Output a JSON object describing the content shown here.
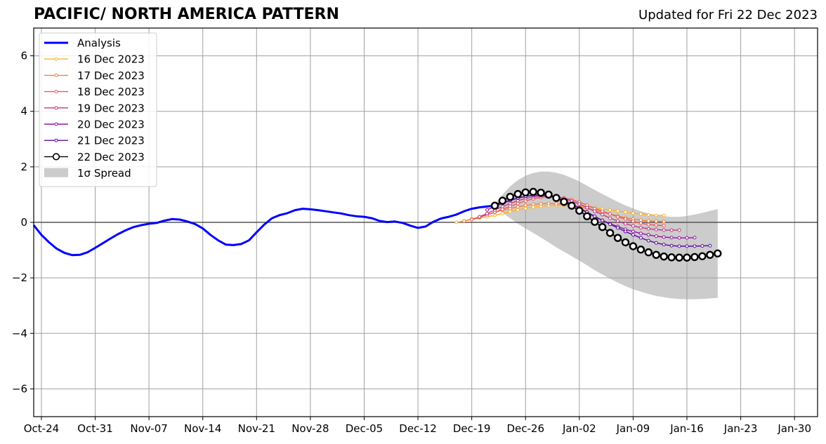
{
  "title": "PACIFIC/ NORTH AMERICA PATTERN",
  "updated": "Updated for Fri 22 Dec 2023",
  "chart_data": {
    "type": "line",
    "title": "PACIFIC/ NORTH AMERICA PATTERN",
    "xlabel": "",
    "ylabel": "",
    "xlim": [
      "2023-10-23",
      "2024-02-02"
    ],
    "ylim": [
      -7,
      7
    ],
    "yticks": [
      -6,
      -4,
      -2,
      0,
      2,
      4,
      6
    ],
    "ytick_labels": [
      "−6",
      "−4",
      "−2",
      "0",
      "2",
      "4",
      "6"
    ],
    "xticks": [
      "2023-10-24",
      "2023-10-31",
      "2023-11-07",
      "2023-11-14",
      "2023-11-21",
      "2023-11-28",
      "2023-12-05",
      "2023-12-12",
      "2023-12-19",
      "2023-12-26",
      "2024-01-02",
      "2024-01-09",
      "2024-01-16",
      "2024-01-23",
      "2024-01-30"
    ],
    "xtick_labels": [
      "Oct-24",
      "Oct-31",
      "Nov-07",
      "Nov-14",
      "Nov-21",
      "Nov-28",
      "Dec-05",
      "Dec-12",
      "Dec-19",
      "Dec-26",
      "Jan-02",
      "Jan-09",
      "Jan-16",
      "Jan-23",
      "Jan-30"
    ],
    "grid": true,
    "legend_position": "top-left",
    "zero_line": 0,
    "analysis": {
      "name": "Analysis",
      "color": "#0000ff",
      "x": [
        "2023-10-23",
        "2023-10-24",
        "2023-10-25",
        "2023-10-26",
        "2023-10-27",
        "2023-10-28",
        "2023-10-29",
        "2023-10-30",
        "2023-10-31",
        "2023-11-01",
        "2023-11-02",
        "2023-11-03",
        "2023-11-04",
        "2023-11-05",
        "2023-11-06",
        "2023-11-07",
        "2023-11-08",
        "2023-11-09",
        "2023-11-10",
        "2023-11-11",
        "2023-11-12",
        "2023-11-13",
        "2023-11-14",
        "2023-11-15",
        "2023-11-16",
        "2023-11-17",
        "2023-11-18",
        "2023-11-19",
        "2023-11-20",
        "2023-11-21",
        "2023-11-22",
        "2023-11-23",
        "2023-11-24",
        "2023-11-25",
        "2023-11-26",
        "2023-11-27",
        "2023-11-28",
        "2023-11-29",
        "2023-11-30",
        "2023-12-01",
        "2023-12-02",
        "2023-12-03",
        "2023-12-04",
        "2023-12-05",
        "2023-12-06",
        "2023-12-07",
        "2023-12-08",
        "2023-12-09",
        "2023-12-10",
        "2023-12-11",
        "2023-12-12",
        "2023-12-13",
        "2023-12-14",
        "2023-12-15",
        "2023-12-16",
        "2023-12-17",
        "2023-12-18",
        "2023-12-19",
        "2023-12-20",
        "2023-12-21",
        "2023-12-22"
      ],
      "y": [
        -0.1,
        -0.45,
        -0.72,
        -0.95,
        -1.1,
        -1.18,
        -1.17,
        -1.08,
        -0.92,
        -0.75,
        -0.58,
        -0.42,
        -0.28,
        -0.17,
        -0.1,
        -0.05,
        -0.02,
        0.06,
        0.12,
        0.1,
        0.03,
        -0.06,
        -0.22,
        -0.45,
        -0.65,
        -0.8,
        -0.82,
        -0.78,
        -0.65,
        -0.36,
        -0.08,
        0.15,
        0.26,
        0.33,
        0.44,
        0.49,
        0.47,
        0.44,
        0.4,
        0.36,
        0.32,
        0.26,
        0.22,
        0.2,
        0.15,
        0.05,
        0.01,
        0.03,
        -0.02,
        -0.12,
        -0.2,
        -0.15,
        0.02,
        0.14,
        0.2,
        0.28,
        0.4,
        0.49,
        0.54,
        0.57,
        0.6
      ]
    },
    "forecasts": [
      {
        "name": "16 Dec 2023",
        "color": "#fbb427",
        "start": "2023-12-17",
        "step_days": 1,
        "values": [
          0.0,
          0.05,
          0.1,
          0.15,
          0.2,
          0.25,
          0.32,
          0.39,
          0.45,
          0.5,
          0.55,
          0.58,
          0.6,
          0.62,
          0.62,
          0.6,
          0.58,
          0.55,
          0.52,
          0.48,
          0.45,
          0.41,
          0.37,
          0.33,
          0.3,
          0.27,
          0.25,
          0.25
        ]
      },
      {
        "name": "17 Dec 2023",
        "color": "#f5813f",
        "start": "2023-12-18",
        "step_days": 1,
        "values": [
          0.05,
          0.12,
          0.2,
          0.28,
          0.36,
          0.44,
          0.5,
          0.56,
          0.61,
          0.65,
          0.67,
          0.68,
          0.67,
          0.64,
          0.6,
          0.55,
          0.5,
          0.43,
          0.36,
          0.3,
          0.23,
          0.17,
          0.12,
          0.08,
          0.05,
          0.04,
          0.03
        ]
      },
      {
        "name": "18 Dec 2023",
        "color": "#e55c5e",
        "start": "2023-12-19",
        "step_days": 1,
        "values": [
          0.1,
          0.18,
          0.27,
          0.37,
          0.47,
          0.58,
          0.68,
          0.77,
          0.85,
          0.9,
          0.93,
          0.92,
          0.88,
          0.82,
          0.73,
          0.62,
          0.5,
          0.4,
          0.3,
          0.2,
          0.12,
          0.04,
          -0.03,
          -0.08,
          -0.1,
          -0.12
        ]
      },
      {
        "name": "19 Dec 2023",
        "color": "#c13a81",
        "start": "2023-12-20",
        "step_days": 1,
        "values": [
          0.2,
          0.32,
          0.45,
          0.57,
          0.68,
          0.78,
          0.86,
          0.92,
          0.95,
          0.95,
          0.92,
          0.86,
          0.77,
          0.66,
          0.53,
          0.4,
          0.28,
          0.15,
          0.05,
          -0.05,
          -0.13,
          -0.19,
          -0.23,
          -0.26,
          -0.28,
          -0.28,
          -0.28
        ]
      },
      {
        "name": "20 Dec 2023",
        "color": "#9512a2",
        "start": "2023-12-21",
        "step_days": 1,
        "values": [
          0.45,
          0.57,
          0.68,
          0.78,
          0.87,
          0.93,
          0.97,
          0.98,
          0.95,
          0.88,
          0.78,
          0.65,
          0.5,
          0.35,
          0.2,
          0.07,
          -0.05,
          -0.15,
          -0.25,
          -0.33,
          -0.4,
          -0.45,
          -0.5,
          -0.53,
          -0.55,
          -0.56,
          -0.56,
          -0.55
        ]
      },
      {
        "name": "21 Dec 2023",
        "color": "#580ba0",
        "start": "2023-12-22",
        "step_days": 1,
        "values": [
          0.6,
          0.7,
          0.8,
          0.88,
          0.94,
          0.98,
          0.99,
          0.96,
          0.89,
          0.79,
          0.66,
          0.52,
          0.37,
          0.22,
          0.07,
          -0.07,
          -0.2,
          -0.33,
          -0.45,
          -0.56,
          -0.66,
          -0.74,
          -0.8,
          -0.84,
          -0.86,
          -0.86,
          -0.86,
          -0.85,
          -0.84
        ]
      }
    ],
    "current": {
      "name": "22 Dec 2023",
      "color": "#000000",
      "start": "2023-12-22",
      "step_days": 1,
      "values": [
        0.6,
        0.78,
        0.92,
        1.02,
        1.08,
        1.1,
        1.07,
        1.0,
        0.88,
        0.74,
        0.6,
        0.42,
        0.22,
        0.02,
        -0.17,
        -0.38,
        -0.56,
        -0.72,
        -0.86,
        -0.98,
        -1.08,
        -1.17,
        -1.23,
        -1.26,
        -1.27,
        -1.27,
        -1.25,
        -1.22,
        -1.17,
        -1.12
      ]
    },
    "spread": {
      "name": "1σ Spread",
      "color": "#cccccc",
      "start": "2023-12-22",
      "step_days": 1,
      "upper": [
        0.65,
        1.0,
        1.3,
        1.52,
        1.68,
        1.78,
        1.83,
        1.83,
        1.79,
        1.71,
        1.6,
        1.47,
        1.32,
        1.17,
        1.02,
        0.88,
        0.74,
        0.61,
        0.5,
        0.4,
        0.32,
        0.26,
        0.22,
        0.2,
        0.2,
        0.23,
        0.28,
        0.34,
        0.41,
        0.48
      ],
      "lower": [
        0.55,
        0.35,
        0.15,
        -0.05,
        -0.22,
        -0.38,
        -0.55,
        -0.72,
        -0.9,
        -1.06,
        -1.22,
        -1.38,
        -1.55,
        -1.72,
        -1.88,
        -2.03,
        -2.17,
        -2.3,
        -2.41,
        -2.5,
        -2.58,
        -2.65,
        -2.7,
        -2.74,
        -2.76,
        -2.77,
        -2.77,
        -2.76,
        -2.74,
        -2.72
      ]
    }
  },
  "legend": {
    "items": [
      {
        "label": "Analysis",
        "color": "#0000ff",
        "kind": "line"
      },
      {
        "label": "16 Dec 2023",
        "color": "#fbb427",
        "kind": "marker-line"
      },
      {
        "label": "17 Dec 2023",
        "color": "#f5813f",
        "kind": "marker-line"
      },
      {
        "label": "18 Dec 2023",
        "color": "#e55c5e",
        "kind": "marker-line"
      },
      {
        "label": "19 Dec 2023",
        "color": "#c13a81",
        "kind": "marker-line"
      },
      {
        "label": "20 Dec 2023",
        "color": "#9512a2",
        "kind": "marker-line"
      },
      {
        "label": "21 Dec 2023",
        "color": "#580ba0",
        "kind": "marker-line"
      },
      {
        "label": "22 Dec 2023",
        "color": "#000000",
        "kind": "big-marker-line"
      },
      {
        "label": "1σ Spread",
        "color": "#cccccc",
        "kind": "patch"
      }
    ]
  }
}
